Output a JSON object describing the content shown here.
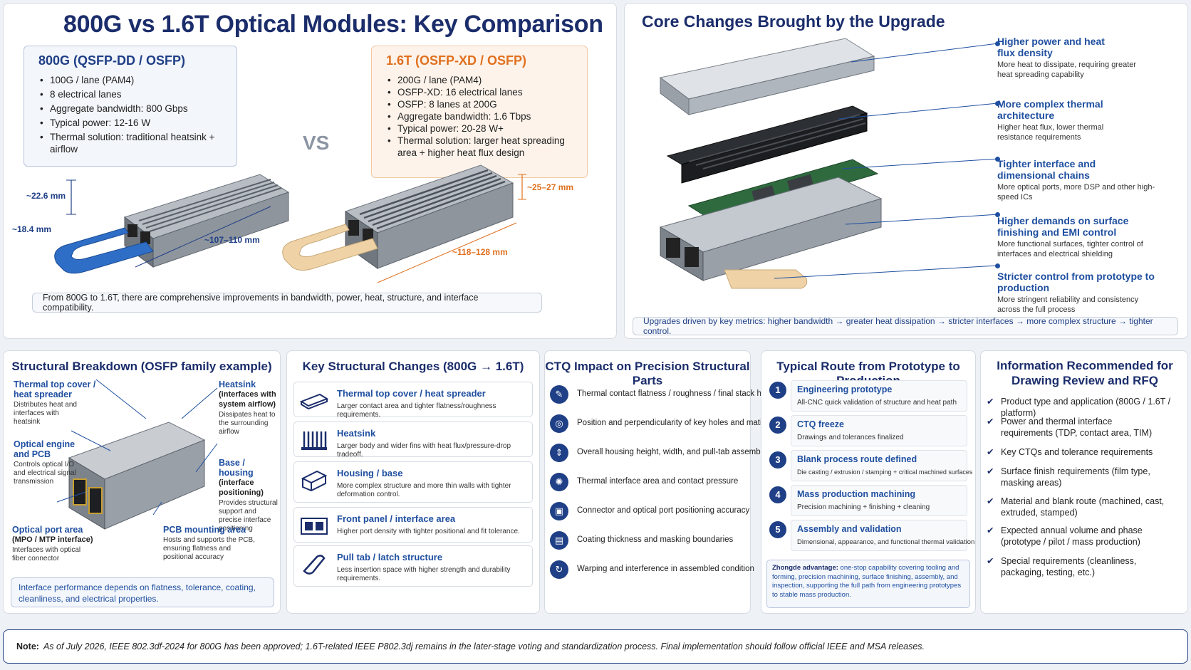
{
  "colors": {
    "navy": "#1b2d6b",
    "blue": "#1f4fa0",
    "orange": "#e0701f",
    "beige": "#efd3a6"
  },
  "title": "800G vs 1.6T Optical Modules: Key Comparison",
  "spec800": {
    "title": "800G (QSFP-DD / OSFP)",
    "items": [
      "100G / lane (PAM4)",
      "8 electrical lanes",
      "Aggregate bandwidth: 800 Gbps",
      "Typical power: 12-16 W",
      "Thermal solution: traditional heatsink + airflow"
    ]
  },
  "vs": "VS",
  "spec16": {
    "title": "1.6T (OSFP-XD / OSFP)",
    "items": [
      "200G / lane (PAM4)",
      "OSFP-XD: 16 electrical lanes",
      "OSFP: 8 lanes at 200G",
      "Aggregate bandwidth: 1.6 Tbps",
      "Typical power: 20-28 W+",
      "Thermal solution: larger heat spreading area + higher heat flux design"
    ]
  },
  "dims": {
    "h800": "~22.6 mm",
    "w800": "~18.4 mm",
    "l800": "~107–110 mm",
    "h16": "~25–27 mm",
    "l16": "~118–128 mm"
  },
  "comparison_summary": "From 800G to 1.6T, there are comprehensive improvements in bandwidth, power, heat, structure, and interface compatibility.",
  "core": {
    "title": "Core Changes Brought by the Upgrade",
    "items": [
      {
        "title": "Higher power and heat flux density",
        "desc": "More heat to dissipate, requiring greater heat spreading capability"
      },
      {
        "title": "More complex thermal architecture",
        "desc": "Higher heat flux, lower thermal resistance requirements"
      },
      {
        "title": "Tighter interface and dimensional chains",
        "desc": "More optical ports, more DSP and other high-speed ICs"
      },
      {
        "title": "Higher demands on surface finishing and EMI control",
        "desc": "More functional surfaces, tighter control of interfaces and electrical shielding"
      },
      {
        "title": "Stricter control from prototype to production",
        "desc": "More stringent reliability and consistency across the full process"
      }
    ],
    "footer": "Upgrades driven by key metrics: higher bandwidth → greater heat dissipation → stricter interfaces → more complex structure → tighter control."
  },
  "breakdown": {
    "title": "Structural Breakdown (OSFP family example)",
    "labels": [
      {
        "title": "Thermal top cover / heat spreader",
        "desc": "Distributes heat and interfaces with heatsink"
      },
      {
        "title": "Heatsink",
        "sub": "(interfaces with system airflow)",
        "desc": "Dissipates heat to the surrounding airflow"
      },
      {
        "title": "Optical engine and PCB",
        "desc": "Controls optical I/O and electrical signal transmission"
      },
      {
        "title": "Base / housing",
        "sub": "(interface positioning)",
        "desc": "Provides structural support and precise interface positioning"
      },
      {
        "title": "Optical port area",
        "sub": "(MPO / MTP interface)",
        "desc": "Interfaces with optical fiber connector"
      },
      {
        "title": "PCB mounting area",
        "desc": "Hosts and supports the PCB, ensuring flatness and positional accuracy"
      }
    ],
    "footer": "Interface performance depends on flatness, tolerance, coating, cleanliness, and electrical properties."
  },
  "key_changes": {
    "title": "Key Structural Changes (800G → 1.6T)",
    "items": [
      {
        "title": "Thermal top cover / heat spreader",
        "desc": "Larger contact area and tighter flatness/roughness requirements."
      },
      {
        "title": "Heatsink",
        "desc": "Larger body and wider fins with heat flux/pressure-drop tradeoff."
      },
      {
        "title": "Housing / base",
        "desc": "More complex structure and more thin walls with tighter deformation control."
      },
      {
        "title": "Front panel / interface area",
        "desc": "Higher port density with tighter positional and fit tolerance."
      },
      {
        "title": "Pull tab / latch structure",
        "desc": "Less insertion space with higher strength and durability requirements."
      }
    ]
  },
  "ctq": {
    "title": "CTQ Impact on Precision Structural Parts",
    "items": [
      "Thermal contact flatness / roughness / final stack height",
      "Position and perpendicularity of key holes and mating faces",
      "Overall housing height, width, and pull-tab assembly dimensions",
      "Thermal interface area and contact pressure",
      "Connector and optical port positioning accuracy",
      "Coating thickness and masking boundaries",
      "Warping and interference in assembled condition"
    ]
  },
  "route": {
    "title": "Typical Route from Prototype to Production",
    "steps": [
      {
        "n": "1",
        "title": "Engineering prototype",
        "desc": "All-CNC quick validation of structure and heat path"
      },
      {
        "n": "2",
        "title": "CTQ freeze",
        "desc": "Drawings and tolerances finalized"
      },
      {
        "n": "3",
        "title": "Blank process route defined",
        "desc": "Die casting / extrusion / stamping + critical machined surfaces"
      },
      {
        "n": "4",
        "title": "Mass production machining",
        "desc": "Precision machining + finishing + cleaning"
      },
      {
        "n": "5",
        "title": "Assembly and validation",
        "desc": "Dimensional, appearance, and functional thermal validation"
      }
    ],
    "adv_label": "Zhongde advantage:",
    "adv_text": "one-stop capability covering tooling and forming, precision machining, surface finishing, assembly, and inspection, supporting the full path from engineering prototypes to stable mass production."
  },
  "rfq": {
    "title": "Information Recommended for Drawing Review and RFQ",
    "items": [
      "Product type and application (800G / 1.6T / platform)",
      "Power and thermal interface requirements (TDP, contact area, TIM)",
      "Key CTQs and tolerance requirements",
      "Surface finish requirements (film type, masking areas)",
      "Material and blank route (machined, cast, extruded, stamped)",
      "Expected annual volume and phase (prototype / pilot / mass production)",
      "Special requirements (cleanliness, packaging, testing, etc.)"
    ]
  },
  "note": {
    "label": "Note:",
    "text": "As of July 2026, IEEE 802.3df-2024 for 800G has been approved; 1.6T-related IEEE P802.3dj remains in the later-stage voting and standardization process. Final implementation should follow official IEEE and MSA releases."
  }
}
